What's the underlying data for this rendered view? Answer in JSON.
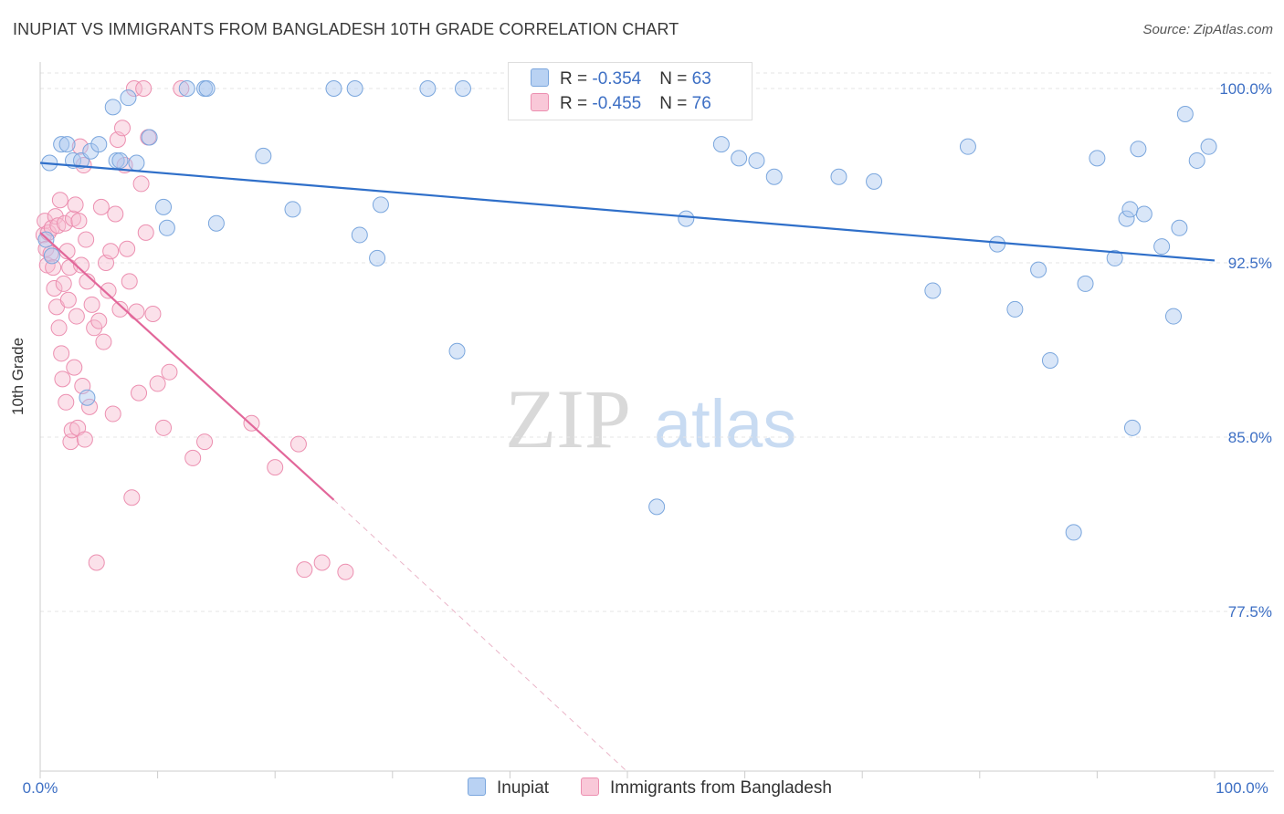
{
  "chart_data": {
    "type": "scatter",
    "title": "INUPIAT VS IMMIGRANTS FROM BANGLADESH 10TH GRADE CORRELATION CHART",
    "source": "Source: ZipAtlas.com",
    "ylabel": "10th Grade",
    "xlabel": "",
    "xlim": [
      0,
      100
    ],
    "ylim": [
      70.6,
      101.0
    ],
    "x_tick_labels": [
      "0.0%",
      "100.0%"
    ],
    "y_ticks": [
      100.0,
      92.5,
      85.0,
      77.5
    ],
    "y_tick_labels": [
      "100.0%",
      "92.5%",
      "85.0%",
      "77.5%"
    ],
    "watermark": "ZIPatlas",
    "colors": {
      "inupiat_fill": "#aac8f0",
      "inupiat_stroke": "#7aa6dd",
      "inupiat_line": "#2f6fc9",
      "bangladesh_fill": "#f7bcd0",
      "bangladesh_stroke": "#ec8fb0",
      "bangladesh_line": "#e2679a",
      "tick_label": "#3d6fc4"
    },
    "series": [
      {
        "name": "Inupiat",
        "R": "-0.354",
        "N": "63",
        "trend": {
          "x0": 0.0,
          "y0": 96.8,
          "x1": 100.0,
          "y1": 92.6
        },
        "points": [
          [
            0.8,
            96.8
          ],
          [
            1.8,
            97.6
          ],
          [
            2.3,
            97.6
          ],
          [
            2.8,
            96.9
          ],
          [
            3.5,
            96.9
          ],
          [
            4.3,
            97.3
          ],
          [
            5.0,
            97.6
          ],
          [
            6.2,
            99.2
          ],
          [
            6.5,
            96.9
          ],
          [
            6.8,
            96.9
          ],
          [
            7.5,
            99.6
          ],
          [
            8.2,
            96.8
          ],
          [
            9.3,
            97.9
          ],
          [
            10.5,
            94.9
          ],
          [
            10.8,
            94.0
          ],
          [
            12.5,
            100.0
          ],
          [
            14.0,
            100.0
          ],
          [
            14.2,
            100.0
          ],
          [
            15.0,
            94.2
          ],
          [
            19.0,
            97.1
          ],
          [
            21.5,
            94.8
          ],
          [
            25.0,
            100.0
          ],
          [
            26.8,
            100.0
          ],
          [
            27.2,
            93.7
          ],
          [
            28.7,
            92.7
          ],
          [
            29.0,
            95.0
          ],
          [
            33.0,
            100.0
          ],
          [
            35.5,
            88.7
          ],
          [
            36.0,
            100.0
          ],
          [
            44.0,
            100.0
          ],
          [
            50.0,
            100.0
          ],
          [
            52.5,
            82.0
          ],
          [
            55.0,
            94.4
          ],
          [
            58.0,
            97.6
          ],
          [
            59.5,
            97.0
          ],
          [
            61.0,
            96.9
          ],
          [
            62.5,
            96.2
          ],
          [
            68.0,
            96.2
          ],
          [
            71.0,
            96.0
          ],
          [
            76.0,
            91.3
          ],
          [
            79.0,
            97.5
          ],
          [
            81.5,
            93.3
          ],
          [
            83.0,
            90.5
          ],
          [
            85.0,
            92.2
          ],
          [
            86.0,
            88.3
          ],
          [
            88.0,
            80.9
          ],
          [
            89.0,
            91.6
          ],
          [
            90.0,
            97.0
          ],
          [
            91.5,
            92.7
          ],
          [
            92.5,
            94.4
          ],
          [
            92.8,
            94.8
          ],
          [
            93.0,
            85.4
          ],
          [
            93.5,
            97.4
          ],
          [
            94.0,
            94.6
          ],
          [
            95.5,
            93.2
          ],
          [
            96.5,
            90.2
          ],
          [
            97.0,
            94.0
          ],
          [
            97.5,
            98.9
          ],
          [
            98.5,
            96.9
          ],
          [
            99.5,
            97.5
          ],
          [
            1.0,
            92.8
          ],
          [
            4.0,
            86.7
          ],
          [
            0.5,
            93.5
          ]
        ]
      },
      {
        "name": "Immigrants from Bangladesh",
        "R": "-0.455",
        "N": "76",
        "trend": {
          "x0": 0.0,
          "y0": 93.8,
          "x1": 25.0,
          "y1": 82.3
        },
        "trend_ext": {
          "x0": 25.0,
          "y0": 82.3,
          "x1": 50.0,
          "y1": 70.6
        },
        "points": [
          [
            0.3,
            93.7
          ],
          [
            0.4,
            94.3
          ],
          [
            0.5,
            93.1
          ],
          [
            0.6,
            92.4
          ],
          [
            0.7,
            93.8
          ],
          [
            0.9,
            92.9
          ],
          [
            1.0,
            94.0
          ],
          [
            1.1,
            92.3
          ],
          [
            1.2,
            91.4
          ],
          [
            1.3,
            94.5
          ],
          [
            1.4,
            90.6
          ],
          [
            1.5,
            94.1
          ],
          [
            1.6,
            89.7
          ],
          [
            1.7,
            95.2
          ],
          [
            1.8,
            88.6
          ],
          [
            1.9,
            87.5
          ],
          [
            2.0,
            91.6
          ],
          [
            2.1,
            94.2
          ],
          [
            2.2,
            86.5
          ],
          [
            2.3,
            93.0
          ],
          [
            2.4,
            90.9
          ],
          [
            2.5,
            92.3
          ],
          [
            2.6,
            84.8
          ],
          [
            2.7,
            85.3
          ],
          [
            2.8,
            94.4
          ],
          [
            2.9,
            88.0
          ],
          [
            3.0,
            95.0
          ],
          [
            3.1,
            90.2
          ],
          [
            3.2,
            85.4
          ],
          [
            3.3,
            94.3
          ],
          [
            3.4,
            97.5
          ],
          [
            3.5,
            92.4
          ],
          [
            3.6,
            87.2
          ],
          [
            3.7,
            96.7
          ],
          [
            3.8,
            84.9
          ],
          [
            3.9,
            93.5
          ],
          [
            4.0,
            91.7
          ],
          [
            4.2,
            86.3
          ],
          [
            4.4,
            90.7
          ],
          [
            4.6,
            89.7
          ],
          [
            4.8,
            79.6
          ],
          [
            5.0,
            90.0
          ],
          [
            5.2,
            94.9
          ],
          [
            5.4,
            89.1
          ],
          [
            5.6,
            92.5
          ],
          [
            5.8,
            91.3
          ],
          [
            6.0,
            93.0
          ],
          [
            6.2,
            86.0
          ],
          [
            6.4,
            94.6
          ],
          [
            6.6,
            97.8
          ],
          [
            6.8,
            90.5
          ],
          [
            7.0,
            98.3
          ],
          [
            7.2,
            96.7
          ],
          [
            7.4,
            93.1
          ],
          [
            7.6,
            91.7
          ],
          [
            7.8,
            82.4
          ],
          [
            8.0,
            100.0
          ],
          [
            8.2,
            90.4
          ],
          [
            8.4,
            86.9
          ],
          [
            8.6,
            95.9
          ],
          [
            8.8,
            100.0
          ],
          [
            9.0,
            93.8
          ],
          [
            9.2,
            97.9
          ],
          [
            9.6,
            90.3
          ],
          [
            10.0,
            87.3
          ],
          [
            10.5,
            85.4
          ],
          [
            11.0,
            87.8
          ],
          [
            12.0,
            100.0
          ],
          [
            13.0,
            84.1
          ],
          [
            14.0,
            84.8
          ],
          [
            18.0,
            85.6
          ],
          [
            20.0,
            83.7
          ],
          [
            22.0,
            84.7
          ],
          [
            24.0,
            79.6
          ],
          [
            26.0,
            79.2
          ],
          [
            22.5,
            79.3
          ]
        ]
      }
    ]
  },
  "labels": {
    "title": "INUPIAT VS IMMIGRANTS FROM BANGLADESH 10TH GRADE CORRELATION CHART",
    "source": "Source: ZipAtlas.com",
    "ylabel": "10th Grade",
    "legend_r1_prefix": "R = ",
    "legend_r1_value": "-0.354",
    "legend_n1_prefix": "N = ",
    "legend_n1_value": "63",
    "legend_r2_prefix": "R = ",
    "legend_r2_value": "-0.455",
    "legend_n2_prefix": "N = ",
    "legend_n2_value": "76",
    "series1": "Inupiat",
    "series2": "Immigrants from Bangladesh"
  }
}
